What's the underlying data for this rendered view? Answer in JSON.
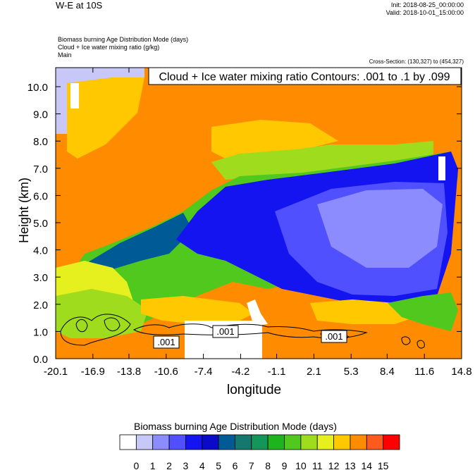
{
  "header": {
    "title": "W-E at 10S",
    "init": "Init: 2018-08-25_00:00:00",
    "valid": "Valid: 2018-10-01_15:00:00",
    "subtitle_lines": [
      "Biomass burning Age Distribution Mode   (days)",
      "Cloud + Ice water mixing ratio   (g/kg)",
      "Main"
    ],
    "cross_section": "Cross-Section: (130,327) to (454,327)"
  },
  "chart_data": {
    "type": "heatmap",
    "contour_title": "Cloud + Ice water mixing ratio Contours: .001 to .1 by .099",
    "xlabel": "longitude",
    "ylabel": "Height (km)",
    "x_ticks": [
      "-20.1",
      "-16.9",
      "-13.8",
      "-10.6",
      "-7.4",
      "-4.2",
      "-1.1",
      "2.1",
      "5.3",
      "8.4",
      "11.6",
      "14.8"
    ],
    "y_ticks": [
      "0.0",
      "1.0",
      "2.0",
      "3.0",
      "4.0",
      "5.0",
      "6.0",
      "7.0",
      "8.0",
      "9.0",
      "10.0"
    ],
    "xlim": [
      -20.1,
      14.8
    ],
    "ylim": [
      0,
      10.7
    ],
    "contour_labels": [
      ".001",
      ".001",
      ".001"
    ],
    "colorbar": {
      "title": "Biomass burning Age Distribution Mode  (days)",
      "labels": [
        "0",
        "1",
        "2",
        "3",
        "4",
        "5",
        "6",
        "7",
        "8",
        "9",
        "10",
        "11",
        "12",
        "13",
        "14",
        "15"
      ],
      "colors": [
        "#ffffff",
        "#c8c8f8",
        "#8c8cff",
        "#5050ff",
        "#1414f0",
        "#0a0ac8",
        "#005a96",
        "#14786e",
        "#14965a",
        "#1eb41e",
        "#50c81e",
        "#a0dc1e",
        "#e6f01e",
        "#ffc800",
        "#ff8c00",
        "#ff5a1e",
        "#ff0000"
      ]
    },
    "colors": {
      "orange": "#ff8c00",
      "gold": "#ffc800",
      "yellow": "#e6f01e",
      "lime": "#a0dc1e",
      "green": "#50c81e",
      "teal": "#005a96",
      "blue": "#1414f0",
      "midblue": "#5050ff",
      "lightblue": "#8c8cff",
      "lavender": "#c8c8f8"
    }
  }
}
